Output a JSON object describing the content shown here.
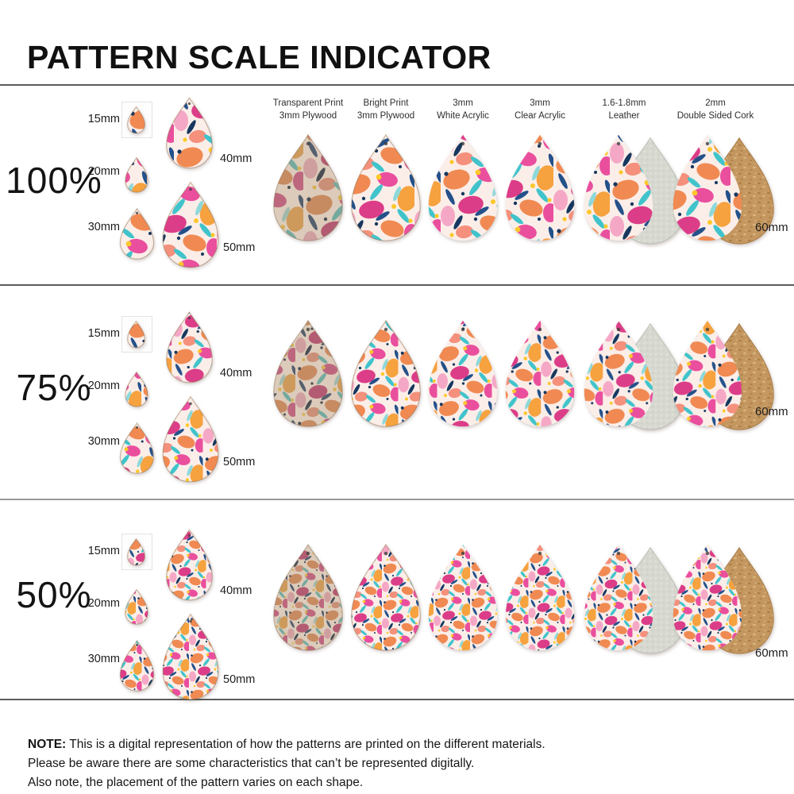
{
  "title": "PATTERN SCALE INDICATOR",
  "sample_label": "60mm",
  "sizes": [
    "15mm",
    "20mm",
    "30mm",
    "40mm",
    "50mm"
  ],
  "rows": [
    {
      "label": "100%",
      "pattern_scale": 1.0
    },
    {
      "label": "75%",
      "pattern_scale": 0.75
    },
    {
      "label": "50%",
      "pattern_scale": 0.5
    }
  ],
  "materials": [
    {
      "name": "transparent-plywood",
      "label_line1": "Transparent Print",
      "label_line2": "3mm Plywood",
      "style": "wood"
    },
    {
      "name": "bright-plywood",
      "label_line1": "Bright Print",
      "label_line2": "3mm Plywood",
      "style": "bright"
    },
    {
      "name": "white-acrylic",
      "label_line1": "3mm",
      "label_line2": "White Acrylic",
      "style": "plain"
    },
    {
      "name": "clear-acrylic",
      "label_line1": "3mm",
      "label_line2": "Clear Acrylic",
      "style": "plain"
    },
    {
      "name": "leather",
      "label_line1": "1.6-1.8mm",
      "label_line2": "Leather",
      "style": "leather"
    },
    {
      "name": "cork",
      "label_line1": "2mm",
      "label_line2": "Double Sided Cork",
      "style": "cork"
    }
  ],
  "note": {
    "label": "NOTE:",
    "line1": "This is a digital representation of how the patterns are printed on the different materials.",
    "line2": "Please be aware there are some characteristics that can’t be represented digitally.",
    "line3": "Also note, the placement of the pattern varies on each shape."
  },
  "colors": {
    "background": "#ffffff",
    "text": "#1a1a1a",
    "divider": "#5c5c5c",
    "pattern_bg": "#fbeee9",
    "coral": "#f08a52",
    "orange": "#f6a23f",
    "hot_pink": "#ea4f9e",
    "magenta": "#dc3d88",
    "soft_pink": "#f5a8c6",
    "salmon": "#f4907c",
    "teal": "#41c3cb",
    "light_teal": "#8ed8da",
    "navy": "#24518a",
    "dark_navy": "#17375e",
    "yellow": "#fcc82a",
    "wood_tint": "#b5803f",
    "leather_back": "#d7d9d1",
    "cork_back": "#c49760"
  }
}
